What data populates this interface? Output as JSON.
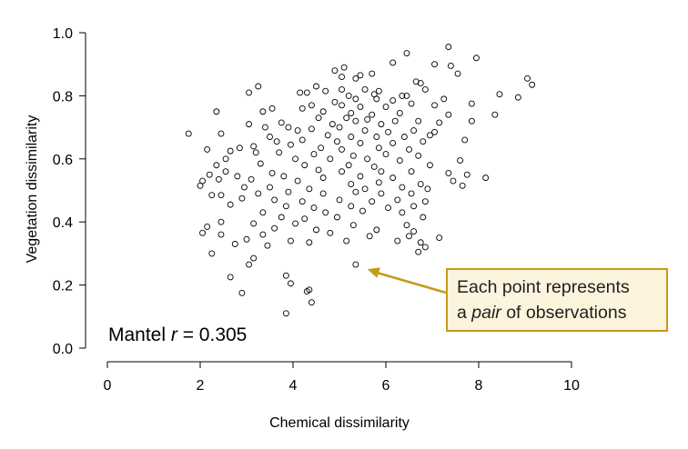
{
  "chart_data": {
    "type": "scatter",
    "title": "",
    "xlabel": "Chemical dissimilarity",
    "ylabel": "Vegetation dissimilarity",
    "xlim": [
      0,
      10
    ],
    "ylim": [
      0,
      1
    ],
    "x_ticks": [
      "0",
      "2",
      "4",
      "6",
      "8",
      "10"
    ],
    "y_ticks": [
      "0.0",
      "0.2",
      "0.4",
      "0.6",
      "0.8",
      "1.0"
    ],
    "grid": false,
    "marker": "open-circle",
    "annotation_text": "Mantel r = 0.305",
    "annotation_prefix": "Mantel ",
    "annotation_var": "r",
    "annotation_value": " = 0.305",
    "callout": {
      "line1": "Each point represents",
      "line2_prefix": "a ",
      "line2_em": "pair",
      "line2_suffix": " of observations",
      "border_color": "#c49b17",
      "fill_color": "#fcf4dd",
      "arrow_target": [
        5.6,
        0.25
      ]
    },
    "points": [
      [
        7.35,
        0.955
      ],
      [
        6.45,
        0.935
      ],
      [
        7.95,
        0.92
      ],
      [
        6.15,
        0.905
      ],
      [
        7.05,
        0.9
      ],
      [
        7.4,
        0.895
      ],
      [
        5.1,
        0.89
      ],
      [
        4.9,
        0.88
      ],
      [
        5.7,
        0.87
      ],
      [
        5.45,
        0.865
      ],
      [
        7.55,
        0.87
      ],
      [
        5.05,
        0.86
      ],
      [
        5.35,
        0.855
      ],
      [
        6.65,
        0.845
      ],
      [
        9.05,
        0.855
      ],
      [
        6.75,
        0.84
      ],
      [
        3.25,
        0.83
      ],
      [
        4.5,
        0.83
      ],
      [
        5.05,
        0.82
      ],
      [
        5.55,
        0.82
      ],
      [
        5.85,
        0.815
      ],
      [
        6.85,
        0.82
      ],
      [
        9.15,
        0.835
      ],
      [
        4.15,
        0.81
      ],
      [
        4.3,
        0.81
      ],
      [
        3.05,
        0.81
      ],
      [
        4.7,
        0.815
      ],
      [
        5.2,
        0.8
      ],
      [
        5.75,
        0.805
      ],
      [
        6.35,
        0.8
      ],
      [
        6.45,
        0.8
      ],
      [
        7.25,
        0.79
      ],
      [
        8.45,
        0.805
      ],
      [
        8.85,
        0.795
      ],
      [
        4.9,
        0.78
      ],
      [
        5.35,
        0.79
      ],
      [
        5.8,
        0.79
      ],
      [
        6.15,
        0.785
      ],
      [
        6.55,
        0.775
      ],
      [
        4.4,
        0.77
      ],
      [
        4.2,
        0.76
      ],
      [
        5.05,
        0.77
      ],
      [
        5.45,
        0.765
      ],
      [
        6.0,
        0.765
      ],
      [
        3.55,
        0.76
      ],
      [
        7.05,
        0.77
      ],
      [
        7.85,
        0.775
      ],
      [
        2.35,
        0.75
      ],
      [
        3.35,
        0.75
      ],
      [
        4.65,
        0.75
      ],
      [
        5.25,
        0.745
      ],
      [
        5.7,
        0.74
      ],
      [
        6.3,
        0.745
      ],
      [
        7.35,
        0.74
      ],
      [
        8.35,
        0.74
      ],
      [
        4.55,
        0.73
      ],
      [
        5.15,
        0.73
      ],
      [
        5.6,
        0.725
      ],
      [
        6.2,
        0.72
      ],
      [
        6.7,
        0.72
      ],
      [
        3.05,
        0.71
      ],
      [
        3.75,
        0.715
      ],
      [
        4.85,
        0.71
      ],
      [
        5.35,
        0.72
      ],
      [
        5.9,
        0.71
      ],
      [
        7.15,
        0.715
      ],
      [
        7.85,
        0.72
      ],
      [
        4.4,
        0.695
      ],
      [
        5.0,
        0.7
      ],
      [
        3.4,
        0.7
      ],
      [
        3.9,
        0.7
      ],
      [
        4.1,
        0.69
      ],
      [
        5.55,
        0.69
      ],
      [
        6.05,
        0.685
      ],
      [
        6.6,
        0.69
      ],
      [
        7.05,
        0.685
      ],
      [
        2.45,
        0.68
      ],
      [
        3.5,
        0.67
      ],
      [
        4.75,
        0.675
      ],
      [
        5.25,
        0.67
      ],
      [
        5.8,
        0.67
      ],
      [
        6.4,
        0.67
      ],
      [
        6.95,
        0.675
      ],
      [
        1.75,
        0.68
      ],
      [
        3.65,
        0.655
      ],
      [
        4.2,
        0.66
      ],
      [
        4.95,
        0.655
      ],
      [
        5.45,
        0.65
      ],
      [
        6.15,
        0.65
      ],
      [
        6.8,
        0.655
      ],
      [
        7.7,
        0.66
      ],
      [
        3.95,
        0.645
      ],
      [
        2.85,
        0.635
      ],
      [
        3.15,
        0.64
      ],
      [
        4.6,
        0.635
      ],
      [
        5.05,
        0.63
      ],
      [
        5.85,
        0.635
      ],
      [
        6.5,
        0.63
      ],
      [
        2.15,
        0.63
      ],
      [
        2.65,
        0.625
      ],
      [
        3.2,
        0.62
      ],
      [
        3.7,
        0.62
      ],
      [
        4.45,
        0.615
      ],
      [
        5.3,
        0.61
      ],
      [
        6.0,
        0.615
      ],
      [
        6.7,
        0.61
      ],
      [
        2.55,
        0.6
      ],
      [
        4.05,
        0.6
      ],
      [
        4.8,
        0.6
      ],
      [
        5.6,
        0.6
      ],
      [
        6.3,
        0.595
      ],
      [
        7.6,
        0.595
      ],
      [
        2.35,
        0.58
      ],
      [
        3.3,
        0.585
      ],
      [
        4.25,
        0.58
      ],
      [
        5.2,
        0.58
      ],
      [
        5.75,
        0.575
      ],
      [
        6.95,
        0.58
      ],
      [
        2.55,
        0.56
      ],
      [
        3.55,
        0.555
      ],
      [
        4.55,
        0.565
      ],
      [
        5.05,
        0.56
      ],
      [
        5.9,
        0.56
      ],
      [
        6.55,
        0.56
      ],
      [
        7.35,
        0.555
      ],
      [
        2.2,
        0.55
      ],
      [
        2.8,
        0.545
      ],
      [
        3.8,
        0.545
      ],
      [
        4.65,
        0.54
      ],
      [
        5.45,
        0.545
      ],
      [
        6.15,
        0.54
      ],
      [
        7.75,
        0.55
      ],
      [
        8.15,
        0.54
      ],
      [
        2.05,
        0.53
      ],
      [
        2.4,
        0.535
      ],
      [
        3.1,
        0.535
      ],
      [
        4.1,
        0.53
      ],
      [
        5.25,
        0.52
      ],
      [
        5.85,
        0.525
      ],
      [
        6.75,
        0.52
      ],
      [
        7.45,
        0.53
      ],
      [
        2.0,
        0.515
      ],
      [
        2.95,
        0.51
      ],
      [
        3.5,
        0.51
      ],
      [
        4.35,
        0.505
      ],
      [
        5.55,
        0.505
      ],
      [
        6.35,
        0.51
      ],
      [
        6.9,
        0.505
      ],
      [
        7.65,
        0.515
      ],
      [
        2.25,
        0.485
      ],
      [
        2.45,
        0.485
      ],
      [
        3.25,
        0.49
      ],
      [
        3.9,
        0.495
      ],
      [
        4.65,
        0.49
      ],
      [
        5.35,
        0.495
      ],
      [
        5.9,
        0.49
      ],
      [
        6.55,
        0.49
      ],
      [
        2.9,
        0.475
      ],
      [
        3.6,
        0.47
      ],
      [
        4.2,
        0.465
      ],
      [
        5.0,
        0.47
      ],
      [
        5.7,
        0.465
      ],
      [
        6.25,
        0.47
      ],
      [
        6.85,
        0.465
      ],
      [
        2.65,
        0.455
      ],
      [
        3.85,
        0.45
      ],
      [
        4.45,
        0.445
      ],
      [
        5.25,
        0.45
      ],
      [
        6.05,
        0.445
      ],
      [
        6.6,
        0.45
      ],
      [
        3.35,
        0.43
      ],
      [
        4.7,
        0.43
      ],
      [
        5.5,
        0.435
      ],
      [
        6.35,
        0.43
      ],
      [
        3.75,
        0.415
      ],
      [
        4.25,
        0.41
      ],
      [
        4.95,
        0.415
      ],
      [
        6.8,
        0.415
      ],
      [
        2.45,
        0.4
      ],
      [
        3.15,
        0.395
      ],
      [
        4.05,
        0.395
      ],
      [
        5.3,
        0.39
      ],
      [
        6.45,
        0.39
      ],
      [
        2.15,
        0.385
      ],
      [
        3.6,
        0.38
      ],
      [
        4.5,
        0.375
      ],
      [
        5.8,
        0.375
      ],
      [
        6.6,
        0.37
      ],
      [
        2.05,
        0.365
      ],
      [
        2.45,
        0.36
      ],
      [
        3.35,
        0.36
      ],
      [
        4.8,
        0.365
      ],
      [
        5.65,
        0.355
      ],
      [
        6.5,
        0.355
      ],
      [
        7.15,
        0.35
      ],
      [
        3.0,
        0.345
      ],
      [
        3.95,
        0.34
      ],
      [
        4.35,
        0.335
      ],
      [
        5.15,
        0.34
      ],
      [
        6.25,
        0.34
      ],
      [
        6.75,
        0.335
      ],
      [
        2.75,
        0.33
      ],
      [
        3.45,
        0.325
      ],
      [
        6.85,
        0.32
      ],
      [
        2.25,
        0.3
      ],
      [
        3.15,
        0.285
      ],
      [
        6.7,
        0.305
      ],
      [
        3.05,
        0.265
      ],
      [
        5.35,
        0.265
      ],
      [
        3.85,
        0.23
      ],
      [
        2.65,
        0.225
      ],
      [
        3.95,
        0.205
      ],
      [
        4.3,
        0.18
      ],
      [
        4.4,
        0.145
      ],
      [
        2.9,
        0.175
      ],
      [
        3.85,
        0.11
      ],
      [
        4.35,
        0.185
      ]
    ]
  }
}
